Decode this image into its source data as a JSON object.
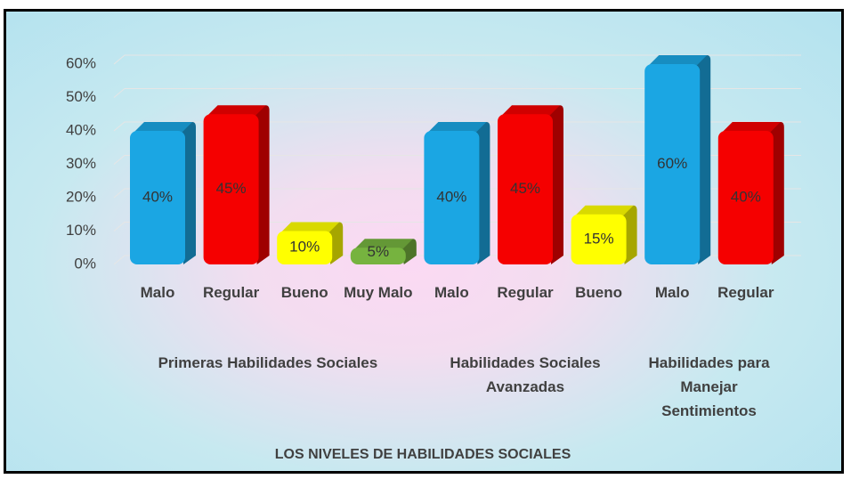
{
  "chart_data": {
    "type": "bar",
    "x_label": "LOS NIVELES DE HABILIDADES SOCIALES",
    "categories": [
      "Malo",
      "Regular",
      "Bueno",
      "Muy Malo",
      "Malo",
      "Regular",
      "Bueno",
      "Malo",
      "Regular"
    ],
    "groups": [
      {
        "name": "Primeras Habilidades Sociales",
        "size": 4
      },
      {
        "name": "Habilidades Sociales Avanzadas",
        "size": 3
      },
      {
        "name": "Habilidades para Manejar Sentimientos",
        "size": 2
      }
    ],
    "values": [
      40,
      45,
      10,
      5,
      40,
      45,
      15,
      60,
      40
    ],
    "value_labels": [
      "40%",
      "45%",
      "10%",
      "5%",
      "40%",
      "45%",
      "15%",
      "60%",
      "40%"
    ],
    "colors": [
      "#1ba6e3",
      "#f50000",
      "#ffff00",
      "#76b33f",
      "#1ba6e3",
      "#f50000",
      "#ffff00",
      "#1ba6e3",
      "#f50000"
    ],
    "ylim": [
      0,
      60
    ],
    "yticks": [
      {
        "value": 0,
        "label": "0%"
      },
      {
        "value": 10,
        "label": "10%"
      },
      {
        "value": 20,
        "label": "20%"
      },
      {
        "value": 30,
        "label": "30%"
      },
      {
        "value": 40,
        "label": "40%"
      },
      {
        "value": 50,
        "label": "50%"
      },
      {
        "value": 60,
        "label": "60%"
      }
    ],
    "grid": true
  }
}
